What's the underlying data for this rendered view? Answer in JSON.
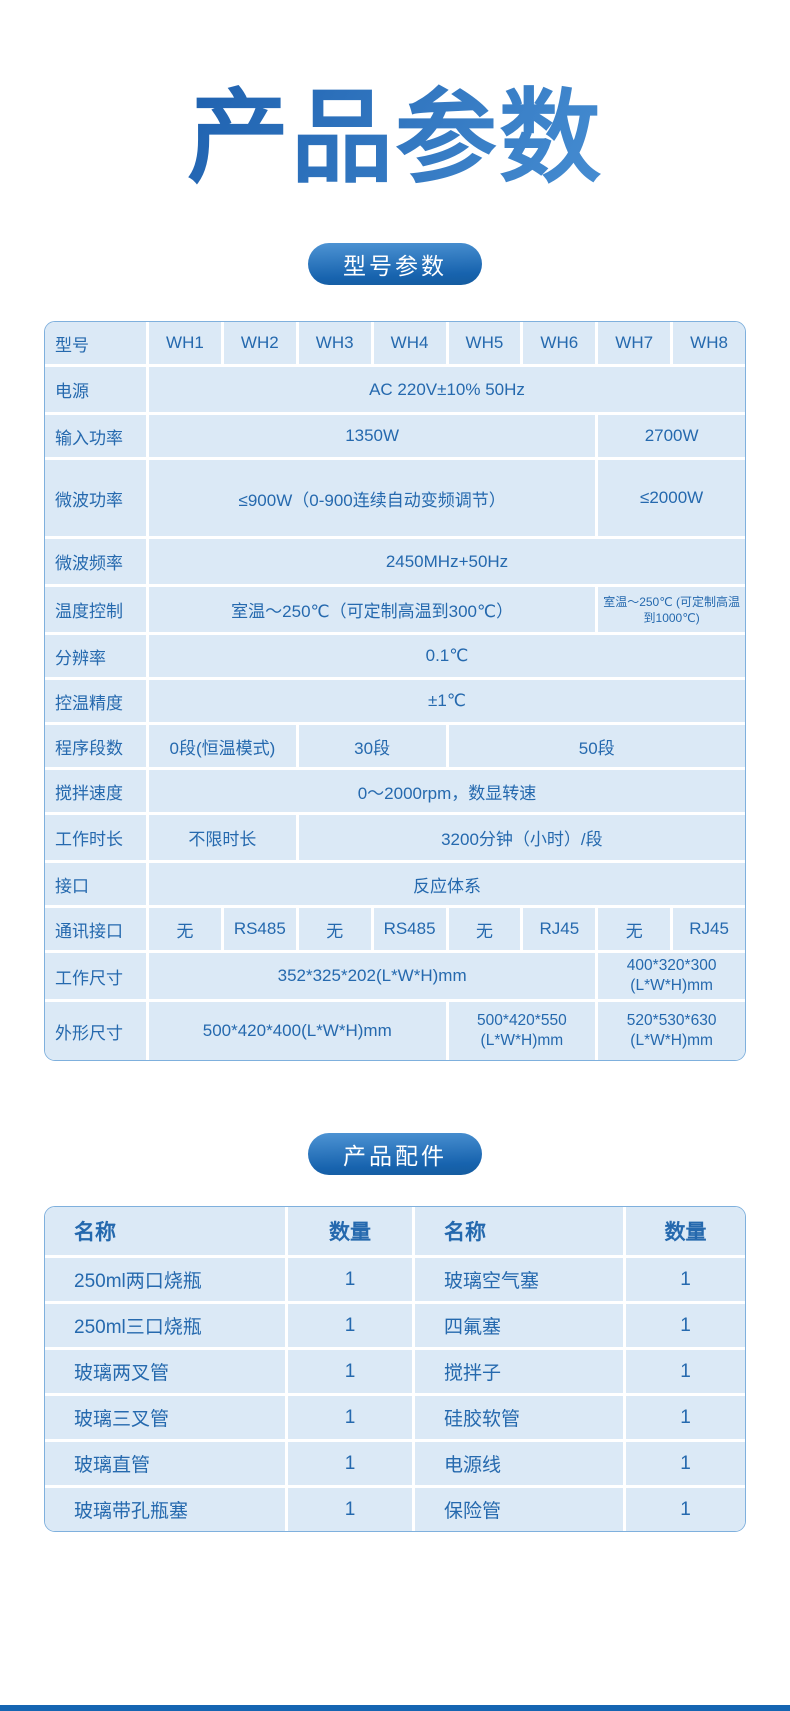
{
  "page": {
    "title": "产品参数",
    "colors": {
      "accent": "#1765af",
      "title_gradient_start": "#1a5cab",
      "title_gradient_end": "#4e96d9",
      "pill_gradient_start": "#4e94d4",
      "pill_gradient_end": "#1763ae",
      "cell_bg": "#dbe9f6",
      "cell_text": "#2569ae",
      "table_border": "#7fb0dd",
      "footer_bar": "#1565b2"
    }
  },
  "sections": {
    "model_params": {
      "pill_label": "型号参数"
    },
    "accessories": {
      "pill_label": "产品配件"
    }
  },
  "spec_table": {
    "rows": [
      {
        "label": "型号",
        "cells": [
          {
            "text": "WH1",
            "span": 1
          },
          {
            "text": "WH2",
            "span": 1
          },
          {
            "text": "WH3",
            "span": 1
          },
          {
            "text": "WH4",
            "span": 1
          },
          {
            "text": "WH5",
            "span": 1
          },
          {
            "text": "WH6",
            "span": 1
          },
          {
            "text": "WH7",
            "span": 1
          },
          {
            "text": "WH8",
            "span": 1
          }
        ]
      },
      {
        "label": "电源",
        "cells": [
          {
            "text": "AC 220V±10% 50Hz",
            "span": 8
          }
        ]
      },
      {
        "label": "输入功率",
        "cells": [
          {
            "text": "1350W",
            "span": 6
          },
          {
            "text": "2700W",
            "span": 2
          }
        ]
      },
      {
        "label": "微波功率",
        "cells": [
          {
            "text": "≤900W（0-900连续自动变频调节）",
            "span": 6
          },
          {
            "text": "≤2000W",
            "span": 2
          }
        ]
      },
      {
        "label": "微波频率",
        "cells": [
          {
            "text": "2450MHz+50Hz",
            "span": 8
          }
        ]
      },
      {
        "label": "温度控制",
        "cells": [
          {
            "text": "室温～250℃（可定制高温到300℃）",
            "span": 6
          },
          {
            "text": "室温～250℃ (可定制高温到1000℃)",
            "span": 2,
            "style": "small"
          }
        ]
      },
      {
        "label": "分辨率",
        "cells": [
          {
            "text": "0.1℃",
            "span": 8
          }
        ]
      },
      {
        "label": "控温精度",
        "cells": [
          {
            "text": "±1℃",
            "span": 8
          }
        ]
      },
      {
        "label": "程序段数",
        "cells": [
          {
            "text": "0段(恒温模式)",
            "span": 2
          },
          {
            "text": "30段",
            "span": 2
          },
          {
            "text": "50段",
            "span": 4
          }
        ]
      },
      {
        "label": "搅拌速度",
        "cells": [
          {
            "text": "0～2000rpm，数显转速",
            "span": 8
          }
        ]
      },
      {
        "label": "工作时长",
        "cells": [
          {
            "text": "不限时长",
            "span": 2
          },
          {
            "text": "3200分钟（小时）/段",
            "span": 6
          }
        ]
      },
      {
        "label": "接口",
        "cells": [
          {
            "text": "反应体系",
            "span": 8
          }
        ]
      },
      {
        "label": "通讯接口",
        "cells": [
          {
            "text": "无",
            "span": 1
          },
          {
            "text": "RS485",
            "span": 1
          },
          {
            "text": "无",
            "span": 1
          },
          {
            "text": "RS485",
            "span": 1
          },
          {
            "text": "无",
            "span": 1
          },
          {
            "text": "RJ45",
            "span": 1
          },
          {
            "text": "无",
            "span": 1
          },
          {
            "text": "RJ45",
            "span": 1
          }
        ]
      },
      {
        "label": "工作尺寸",
        "cells": [
          {
            "text": "352*325*202(L*W*H)mm",
            "span": 6
          },
          {
            "text": "400*320*300 (L*W*H)mm",
            "span": 2,
            "style": "wrap"
          }
        ]
      },
      {
        "label": "外形尺寸",
        "cells": [
          {
            "text": "500*420*400(L*W*H)mm",
            "span": 4
          },
          {
            "text": "500*420*550 (L*W*H)mm",
            "span": 2,
            "style": "wrap"
          },
          {
            "text": "520*530*630 (L*W*H)mm",
            "span": 2,
            "style": "wrap"
          }
        ]
      }
    ]
  },
  "accessories_table": {
    "headers": [
      "名称",
      "数量",
      "名称",
      "数量"
    ],
    "rows": [
      [
        "250ml两口烧瓶",
        "1",
        "玻璃空气塞",
        "1"
      ],
      [
        "250ml三口烧瓶",
        "1",
        "四氟塞",
        "1"
      ],
      [
        "玻璃两叉管",
        "1",
        "搅拌子",
        "1"
      ],
      [
        "玻璃三叉管",
        "1",
        "硅胶软管",
        "1"
      ],
      [
        "玻璃直管",
        "1",
        "电源线",
        "1"
      ],
      [
        "玻璃带孔瓶塞",
        "1",
        "保险管",
        "1"
      ]
    ]
  }
}
